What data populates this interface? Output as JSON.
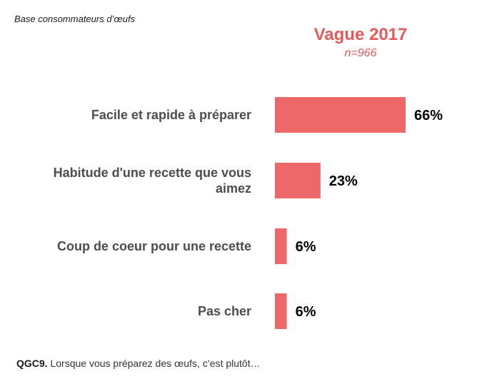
{
  "header": {
    "base_note": "Base consommateurs d’œufs",
    "wave_title": "Vague 2017",
    "wave_n": "n=966"
  },
  "footer": {
    "question_code": "QGC9.",
    "question_text": " Lorsque vous préparez des œufs, c’est plutôt…"
  },
  "colors": {
    "bar": "#ec6869",
    "accent": "#e8595d"
  },
  "chart_data": {
    "type": "bar",
    "orientation": "horizontal",
    "title": "Vague 2017",
    "subtitle": "n=966",
    "categories": [
      [
        "Facile et rapide à préparer"
      ],
      [
        "Habitude d'une recette que vous",
        "aimez"
      ],
      [
        "Coup de coeur pour une recette"
      ],
      [
        "Pas cher"
      ]
    ],
    "values": [
      66,
      23,
      6,
      6
    ],
    "value_labels": [
      "66%",
      "23%",
      "6%",
      "6%"
    ],
    "xlim": [
      0,
      100
    ],
    "grid": false,
    "legend": "none"
  }
}
